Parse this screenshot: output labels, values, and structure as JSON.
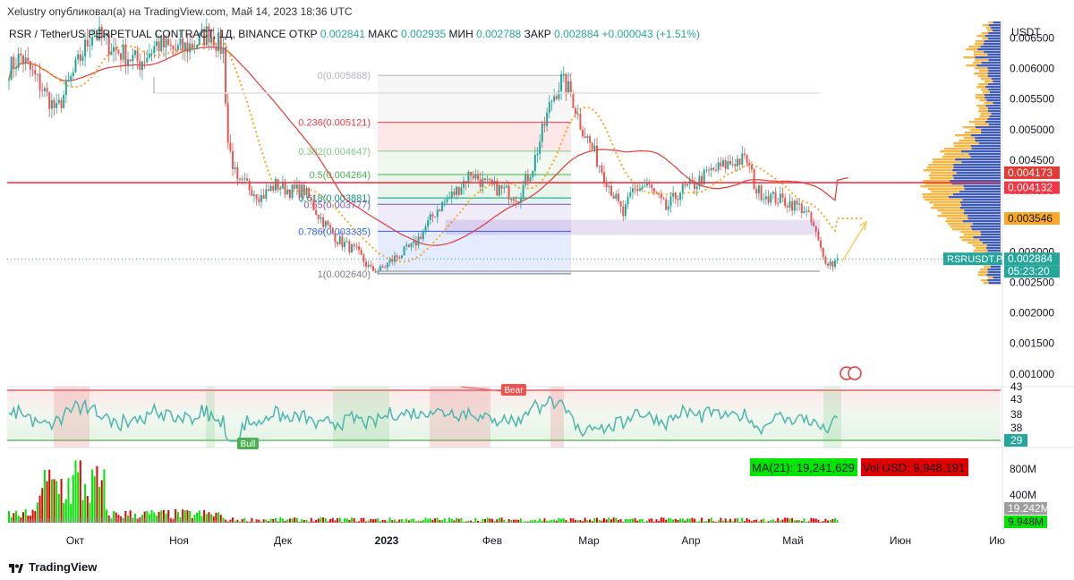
{
  "publisher_line": "Xelustry опубликовал(а) на TradingView.com, Май 14, 2023 18:36 UTC",
  "legend": {
    "symbol": "RSR / TetherUS PERPETUAL CONTRACT, 1Д, BINANCE",
    "open_label": "ОТКР",
    "open_value": "0.002841",
    "high_label": "МАКС",
    "high_value": "0.002935",
    "low_label": "МИН",
    "low_value": "0.002788",
    "close_label": "ЗАКР",
    "close_value": "0.002884",
    "change": "+0.000043 (+1.51%)"
  },
  "price_axis": {
    "currency": "USDT",
    "ticks": [
      "0.006500",
      "0.006000",
      "0.005500",
      "0.005000",
      "0.004500",
      "0.004000",
      "0.003500",
      "0.003000",
      "0.002500",
      "0.002000",
      "0.001500",
      "0.001000"
    ],
    "badges": {
      "ma_long": "0.004173",
      "hline": "0.004132",
      "ma_short": "0.003546",
      "symbol_tag": "RSRUSDT.P",
      "last_price": "0.002884",
      "countdown": "05:23:20"
    }
  },
  "time_axis": [
    "Окт",
    "Ноя",
    "Дек",
    "2023",
    "Фев",
    "Мар",
    "Апр",
    "Май",
    "Июн",
    "Ию"
  ],
  "fib_levels": [
    {
      "label": "0(0.005888)",
      "price": 0.005888,
      "color": "#b2b5be"
    },
    {
      "label": "0.236(0.005121)",
      "price": 0.005121,
      "color": "#f23645"
    },
    {
      "label": "0.382(0.004647)",
      "price": 0.004647,
      "color": "#81c784"
    },
    {
      "label": "0.5(0.004264)",
      "price": 0.004264,
      "color": "#4caf50"
    },
    {
      "label": "0.618(0.003881)",
      "price": 0.003881,
      "color": "#089981"
    },
    {
      "label": "0.65(0.003777)",
      "price": 0.003777,
      "color": "#7e57c2"
    },
    {
      "label": "0.786(0.003335)",
      "price": 0.003335,
      "color": "#2962ff"
    },
    {
      "label": "1(0.002640)",
      "price": 0.00264,
      "color": "#787b86"
    }
  ],
  "oscillator": {
    "axis_ticks": [
      "43",
      "43",
      "38",
      "38",
      "29"
    ],
    "bear_label": "Bear",
    "bull_label": "Bull"
  },
  "volume": {
    "ma_label": "MA(21): 19,241,629",
    "vol_label": "Vol USD: 9,948,191",
    "axis_ticks": [
      "800M",
      "400M"
    ],
    "ma_badge": "19.242M",
    "vol_badge": "9.948M"
  },
  "footer": {
    "brand": "TradingView"
  },
  "colors": {
    "up": "#26a69a",
    "down": "#ef5350",
    "ma_long": "#e53935",
    "ma_short": "#f9a825",
    "hline": "#f23645",
    "rsi": "#4db6ac",
    "vol_up": "#00e600",
    "vol_down": "#e00000"
  },
  "chart_data": {
    "type": "candlestick",
    "symbol": "RSRUSDT.P",
    "timeframe": "1D",
    "ylim": [
      0.00085,
      0.0068
    ],
    "hline": 0.004132,
    "ma_long_last": 0.004173,
    "ma_short_last": 0.003546,
    "last_close": 0.002884,
    "fib_anchor_high": 0.005888,
    "fib_anchor_low": 0.00264,
    "close_path": [
      [
        0,
        0.006
      ],
      [
        5,
        0.0062
      ],
      [
        12,
        0.0058
      ],
      [
        20,
        0.0053
      ],
      [
        28,
        0.006
      ],
      [
        35,
        0.0066
      ],
      [
        45,
        0.0063
      ],
      [
        55,
        0.0061
      ],
      [
        62,
        0.0064
      ],
      [
        70,
        0.0063
      ],
      [
        78,
        0.0064
      ],
      [
        84,
        0.0066
      ],
      [
        90,
        0.0063
      ],
      [
        92,
        0.0048
      ],
      [
        96,
        0.0041
      ],
      [
        100,
        0.0041
      ],
      [
        106,
        0.0039
      ],
      [
        112,
        0.0041
      ],
      [
        118,
        0.004
      ],
      [
        124,
        0.004
      ],
      [
        130,
        0.0036
      ],
      [
        138,
        0.0032
      ],
      [
        146,
        0.003
      ],
      [
        152,
        0.0027
      ],
      [
        156,
        0.0027
      ],
      [
        162,
        0.0029
      ],
      [
        170,
        0.0031
      ],
      [
        180,
        0.0037
      ],
      [
        188,
        0.004
      ],
      [
        194,
        0.0043
      ],
      [
        200,
        0.0041
      ],
      [
        208,
        0.004
      ],
      [
        214,
        0.0039
      ],
      [
        220,
        0.0044
      ],
      [
        228,
        0.0055
      ],
      [
        232,
        0.0058
      ],
      [
        236,
        0.0056
      ],
      [
        240,
        0.0051
      ],
      [
        246,
        0.0046
      ],
      [
        252,
        0.0041
      ],
      [
        258,
        0.0036
      ],
      [
        262,
        0.004
      ],
      [
        268,
        0.0041
      ],
      [
        276,
        0.0037
      ],
      [
        282,
        0.004
      ],
      [
        288,
        0.0041
      ],
      [
        294,
        0.0043
      ],
      [
        300,
        0.0044
      ],
      [
        306,
        0.0045
      ],
      [
        310,
        0.0045
      ],
      [
        314,
        0.004
      ],
      [
        320,
        0.0039
      ],
      [
        328,
        0.0038
      ],
      [
        334,
        0.0037
      ],
      [
        338,
        0.0034
      ],
      [
        342,
        0.0029
      ],
      [
        346,
        0.0028
      ],
      [
        348,
        0.002884
      ]
    ]
  }
}
